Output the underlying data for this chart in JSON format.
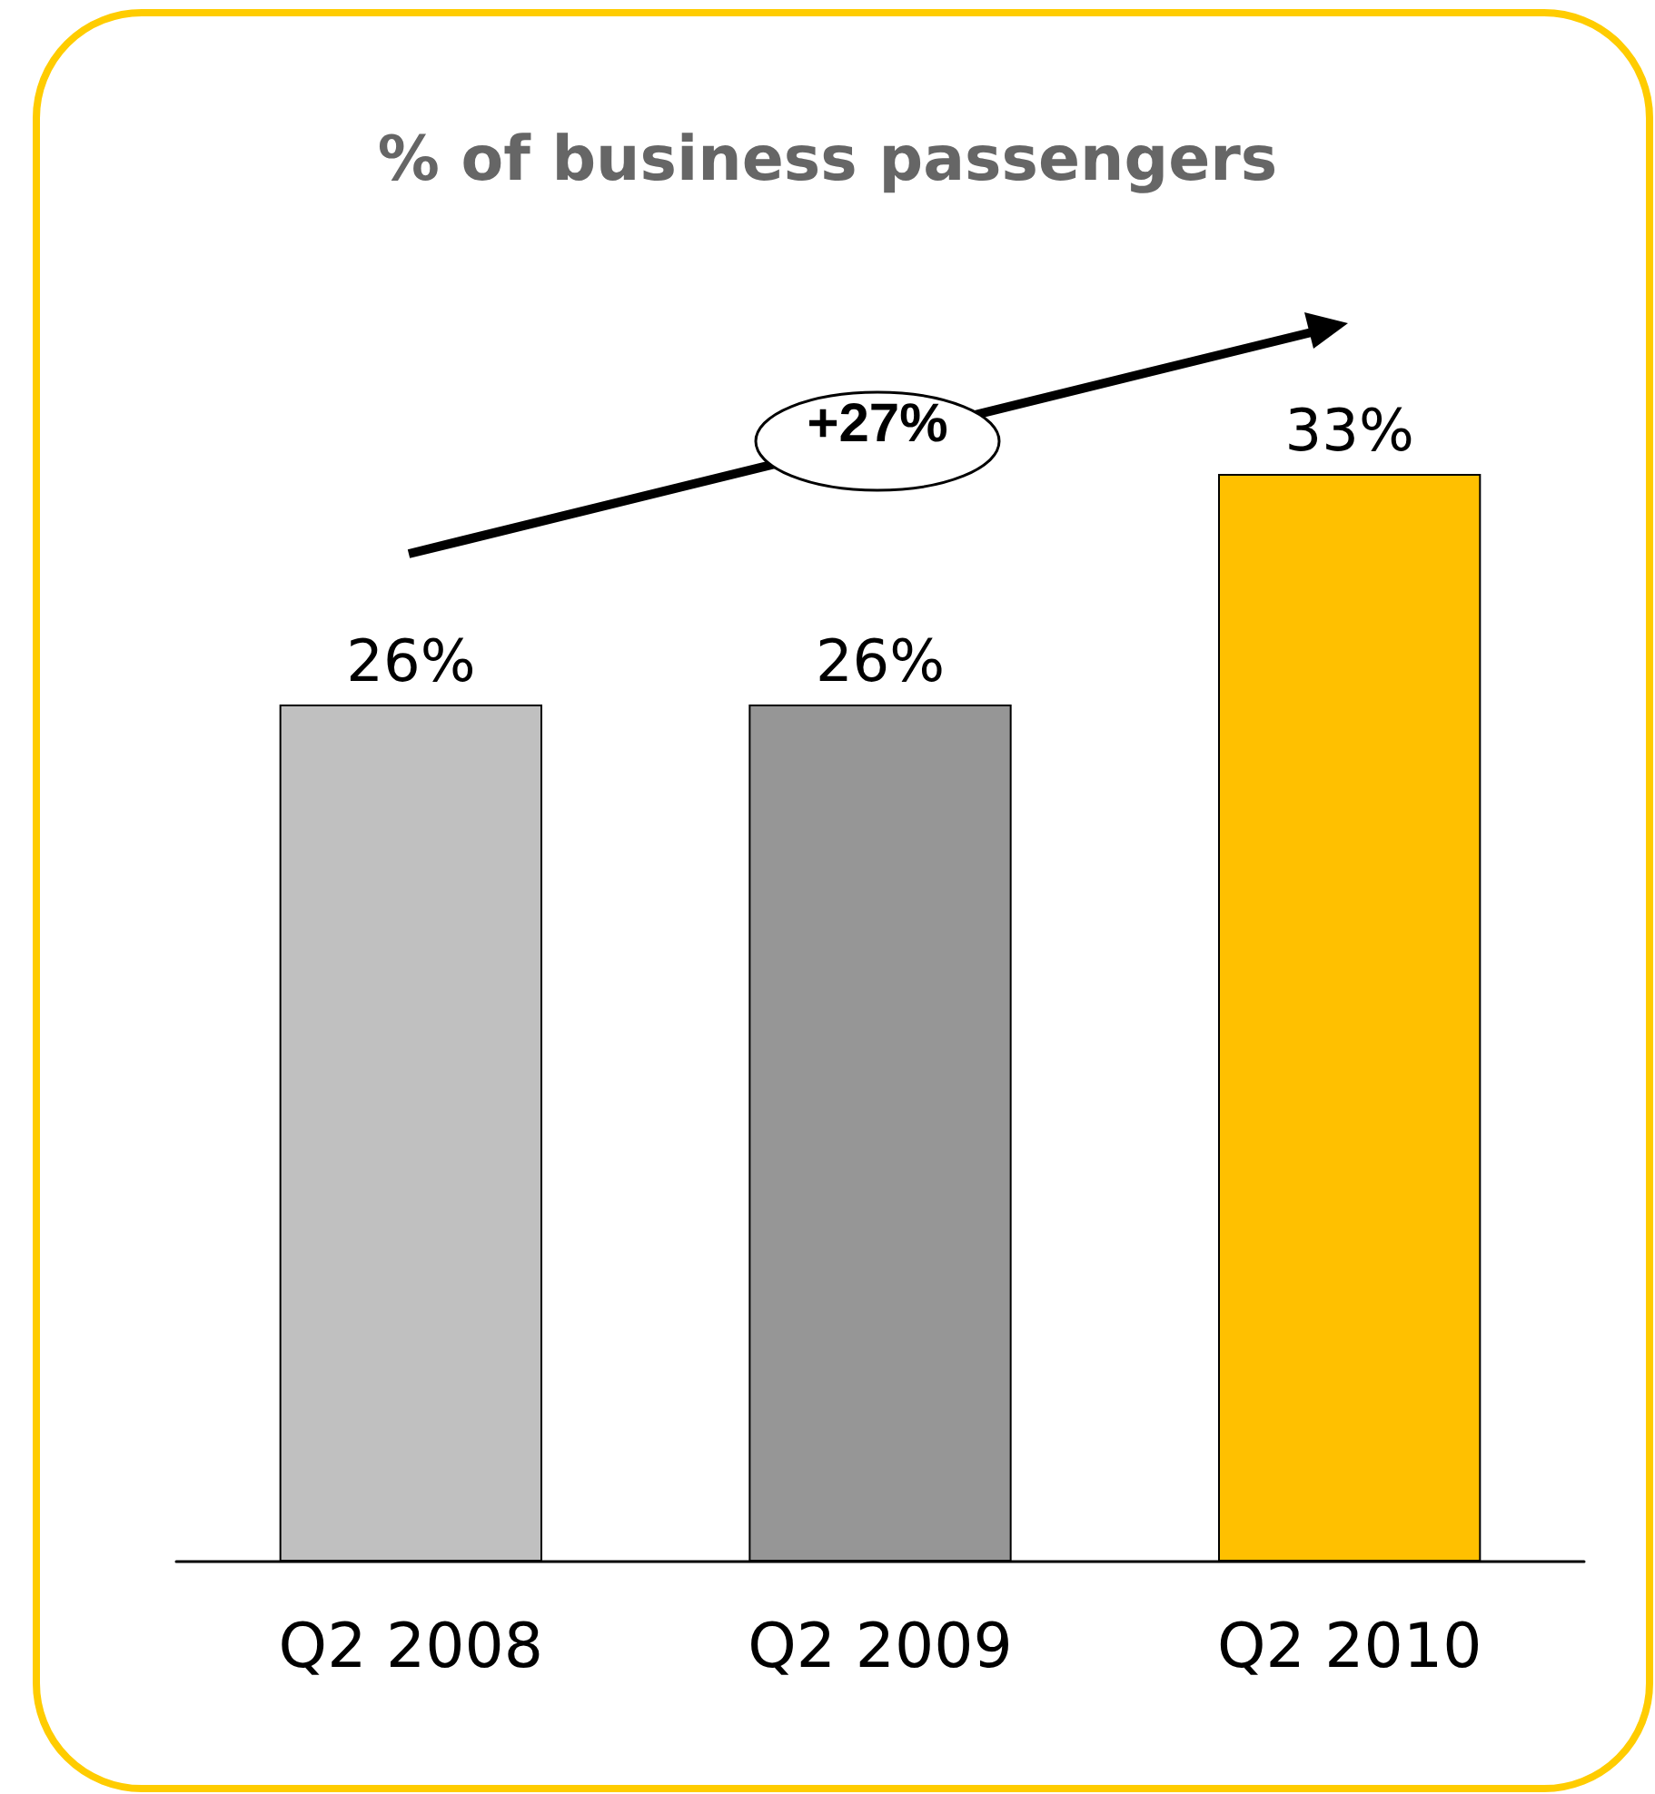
{
  "chart_data": {
    "type": "bar",
    "title": "% of business passengers",
    "categories": [
      "Q2 2008",
      "Q2 2009",
      "Q2 2010"
    ],
    "values": [
      26,
      26,
      33
    ],
    "colors": [
      "#c0c0c0",
      "#969696",
      "#ffc000"
    ],
    "value_labels": [
      "26%",
      "26%",
      "33%"
    ],
    "annotations": [
      "+27%"
    ]
  }
}
